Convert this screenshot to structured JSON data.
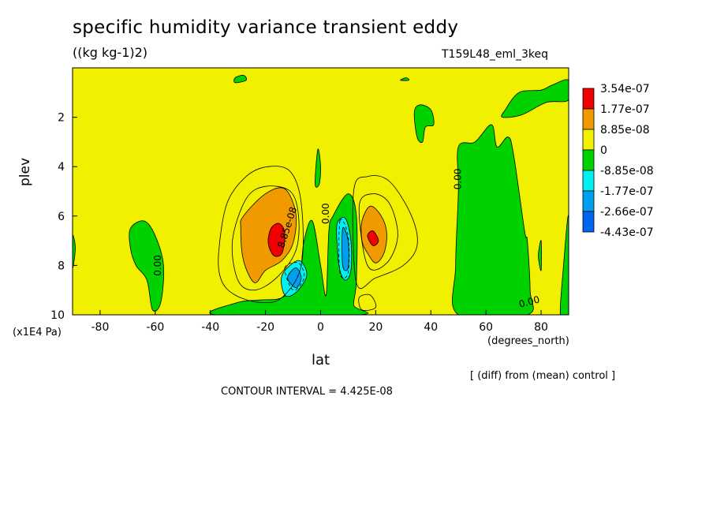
{
  "chart_data": {
    "type": "heatmap",
    "title": "specific humidity variance transient eddy",
    "units": "((kg kg-1)2)",
    "run_name": "T159L48_eml_3keq",
    "xlabel": "lat",
    "xunit": "(degrees_north)",
    "ylabel": "plev",
    "yunit": "(x1E4 Pa)",
    "xlim": [
      -90,
      90
    ],
    "ylim": [
      10,
      0
    ],
    "x_ticks": [
      -80,
      -60,
      -40,
      -20,
      0,
      20,
      40,
      60,
      80
    ],
    "x_tick_labels": [
      "-80",
      "-60",
      "-40",
      "-20",
      "0",
      "20",
      "40",
      "60",
      "80"
    ],
    "y_ticks": [
      2,
      4,
      6,
      8,
      10
    ],
    "y_tick_labels": [
      "2",
      "4",
      "6",
      "8",
      "10"
    ],
    "note": "[ (diff) from (mean) control ]",
    "contour_interval": "CONTOUR INTERVAL = 4.425E-08",
    "contour_labels": [
      "0.00",
      "0.00",
      "0.00",
      "0.00",
      "8.85e-08"
    ],
    "legend": [
      {
        "label": "3.54e-07",
        "color": "#f00000"
      },
      {
        "label": "1.77e-07",
        "color": "#f09a00"
      },
      {
        "label": "8.85e-08",
        "color": "#f0f000"
      },
      {
        "label": "0",
        "color": "#00d200"
      },
      {
        "label": "-8.85e-08",
        "color": "#00f0f0"
      },
      {
        "label": "-1.77e-07",
        "color": "#00a0f0"
      },
      {
        "label": "-2.66e-07",
        "color": "#0064f0"
      },
      {
        "label": "-4.43e-07",
        "color": ""
      }
    ],
    "background_color": "#f0f000",
    "regions": [
      {
        "level": "negative",
        "color": "#00d200",
        "pts": [
          [
            -38,
            10
          ],
          [
            -30,
            9.5
          ],
          [
            -22,
            9.4
          ],
          [
            -14,
            9.3
          ],
          [
            -8,
            8.6
          ],
          [
            -6,
            7
          ],
          [
            -3,
            6.2
          ],
          [
            0,
            8
          ],
          [
            2,
            9.2
          ],
          [
            3,
            6.6
          ],
          [
            4.5,
            6
          ],
          [
            10,
            5.1
          ],
          [
            13,
            6
          ],
          [
            13,
            8.6
          ],
          [
            12,
            9.6
          ],
          [
            14,
            10
          ]
        ]
      },
      {
        "level": "negative",
        "color": "#00d200",
        "pts": [
          [
            -90,
            6.8
          ],
          [
            -89,
            7.3
          ],
          [
            -90,
            8.1
          ]
        ]
      },
      {
        "level": "negative",
        "color": "#00d200",
        "pts": [
          [
            -69,
            6.5
          ],
          [
            -64,
            6.2
          ],
          [
            -60,
            6.8
          ],
          [
            -57,
            8
          ],
          [
            -58,
            9.5
          ],
          [
            -61,
            9.8
          ],
          [
            -63,
            8.6
          ],
          [
            -67,
            8
          ],
          [
            -69,
            7.3
          ]
        ]
      },
      {
        "level": "negative",
        "color": "#00d200",
        "pts": [
          [
            -2,
            4.7
          ],
          [
            -1,
            3.3
          ],
          [
            0,
            4
          ],
          [
            -0.5,
            4.7
          ]
        ]
      },
      {
        "level": "negative",
        "color": "#00d200",
        "pts": [
          [
            -31,
            0.4
          ],
          [
            -28,
            0.3
          ],
          [
            -27,
            0.5
          ],
          [
            -31,
            0.6
          ]
        ]
      },
      {
        "level": "negative",
        "color": "#00d200",
        "pts": [
          [
            29,
            0.5
          ],
          [
            31,
            0.4
          ],
          [
            32,
            0.5
          ]
        ]
      },
      {
        "level": "negative",
        "color": "#00d200",
        "pts": [
          [
            34,
            1.8
          ],
          [
            36,
            1.5
          ],
          [
            40,
            1.7
          ],
          [
            41,
            2.3
          ],
          [
            38,
            2.4
          ],
          [
            37,
            3
          ],
          [
            35,
            2.8
          ]
        ]
      },
      {
        "level": "negative",
        "color": "#00d200",
        "pts": [
          [
            50,
            3.2
          ],
          [
            56,
            3
          ],
          [
            62,
            2.3
          ],
          [
            64,
            3.2
          ],
          [
            68,
            2.8
          ],
          [
            70,
            3.5
          ],
          [
            74,
            6.6
          ],
          [
            75,
            7
          ],
          [
            76,
            9
          ],
          [
            75,
            10
          ],
          [
            50,
            10
          ],
          [
            49,
            8
          ],
          [
            50,
            5
          ]
        ]
      },
      {
        "level": "negative",
        "color": "#00d200",
        "pts": [
          [
            67,
            1.7
          ],
          [
            72,
            1
          ],
          [
            80,
            0.9
          ],
          [
            84,
            0.7
          ],
          [
            90,
            0.5
          ],
          [
            90,
            1.3
          ],
          [
            82,
            1.4
          ],
          [
            73,
            1.9
          ],
          [
            66,
            2
          ]
        ]
      },
      {
        "level": "negative",
        "color": "#00d200",
        "pts": [
          [
            88,
            8.2
          ],
          [
            90,
            6
          ],
          [
            90,
            10
          ],
          [
            87,
            10
          ]
        ]
      },
      {
        "level": "negative",
        "color": "#00d200",
        "pts": [
          [
            79,
            7.6
          ],
          [
            80,
            7
          ],
          [
            80,
            8.2
          ]
        ]
      },
      {
        "level": "cyan",
        "color": "#00f0f0",
        "pts": [
          [
            -14,
            8.4
          ],
          [
            -8,
            7.8
          ],
          [
            -5,
            8.4
          ],
          [
            -9,
            9.1
          ],
          [
            -13,
            9.2
          ]
        ]
      },
      {
        "level": "cyan",
        "color": "#00f0f0",
        "pts": [
          [
            6,
            6.3
          ],
          [
            9,
            6.1
          ],
          [
            11,
            7
          ],
          [
            11,
            8.2
          ],
          [
            9,
            8.6
          ],
          [
            7,
            8.2
          ],
          [
            6,
            7.2
          ]
        ]
      },
      {
        "level": "mid-blue",
        "color": "#00a0f0",
        "pts": [
          [
            -12,
            8.5
          ],
          [
            -9,
            8.1
          ],
          [
            -7,
            8.5
          ],
          [
            -9,
            8.9
          ]
        ]
      },
      {
        "level": "mid-blue",
        "color": "#00a0f0",
        "pts": [
          [
            8,
            6.5
          ],
          [
            10,
            7
          ],
          [
            10,
            8.1
          ],
          [
            8,
            8
          ]
        ]
      },
      {
        "level": "orange",
        "color": "#f09a00",
        "pts": [
          [
            -28,
            6
          ],
          [
            -20,
            5.1
          ],
          [
            -13,
            4.9
          ],
          [
            -9,
            5.9
          ],
          [
            -10,
            7.1
          ],
          [
            -14,
            7.8
          ],
          [
            -20,
            8.2
          ],
          [
            -24,
            8.7
          ],
          [
            -28,
            7.8
          ],
          [
            -29,
            6.5
          ]
        ]
      },
      {
        "level": "orange",
        "color": "#f09a00",
        "pts": [
          [
            15,
            6.2
          ],
          [
            18,
            5.6
          ],
          [
            22,
            6
          ],
          [
            24,
            6.7
          ],
          [
            23,
            7.5
          ],
          [
            20,
            7.9
          ],
          [
            17,
            7.5
          ],
          [
            15,
            7
          ]
        ]
      },
      {
        "level": "red",
        "color": "#f00000",
        "pts": [
          [
            -18,
            6.5
          ],
          [
            -15,
            6.3
          ],
          [
            -13,
            6.7
          ],
          [
            -14,
            7.5
          ],
          [
            -17,
            7.6
          ],
          [
            -19,
            7.1
          ]
        ]
      },
      {
        "level": "red",
        "color": "#f00000",
        "pts": [
          [
            17,
            6.8
          ],
          [
            19,
            6.6
          ],
          [
            21,
            7
          ],
          [
            19,
            7.2
          ]
        ]
      }
    ],
    "contour_lines": [
      {
        "style": "solid",
        "pts": [
          [
            -37,
            7.5
          ],
          [
            -34,
            5.5
          ],
          [
            -27,
            4.4
          ],
          [
            -19,
            4
          ],
          [
            -11,
            4.2
          ],
          [
            -7,
            5.5
          ],
          [
            -7,
            8
          ],
          [
            -14,
            9.3
          ],
          [
            -22,
            9.5
          ],
          [
            -31,
            9.2
          ],
          [
            -36,
            8.6
          ]
        ]
      },
      {
        "style": "solid",
        "pts": [
          [
            -32,
            7
          ],
          [
            -27,
            5.3
          ],
          [
            -20,
            4.8
          ],
          [
            -11,
            5
          ],
          [
            -8,
            6
          ],
          [
            -9,
            7.4
          ],
          [
            -16,
            8.5
          ],
          [
            -24,
            9
          ],
          [
            -30,
            8.6
          ]
        ]
      },
      {
        "style": "solid",
        "pts": [
          [
            12,
            5
          ],
          [
            17,
            4.4
          ],
          [
            25,
            4.6
          ],
          [
            33,
            6
          ],
          [
            35,
            7.2
          ],
          [
            30,
            8
          ],
          [
            20,
            8.5
          ],
          [
            13,
            8.7
          ]
        ]
      },
      {
        "style": "solid",
        "pts": [
          [
            14,
            5.6
          ],
          [
            19,
            5.1
          ],
          [
            25,
            5.5
          ],
          [
            28,
            6.8
          ],
          [
            24,
            7.9
          ],
          [
            17,
            8
          ]
        ]
      },
      {
        "style": "dashed",
        "pts": [
          [
            -13,
            8.1
          ],
          [
            -8,
            7.9
          ],
          [
            -6,
            8.5
          ],
          [
            -10,
            9
          ]
        ]
      },
      {
        "style": "dashed",
        "pts": [
          [
            7,
            6.2
          ],
          [
            10,
            6.8
          ],
          [
            10,
            8.3
          ],
          [
            7,
            8.3
          ]
        ]
      },
      {
        "style": "solid",
        "pts": [
          [
            14,
            9.3
          ],
          [
            18,
            9.2
          ],
          [
            20,
            9.7
          ],
          [
            15,
            9.8
          ]
        ]
      }
    ]
  }
}
